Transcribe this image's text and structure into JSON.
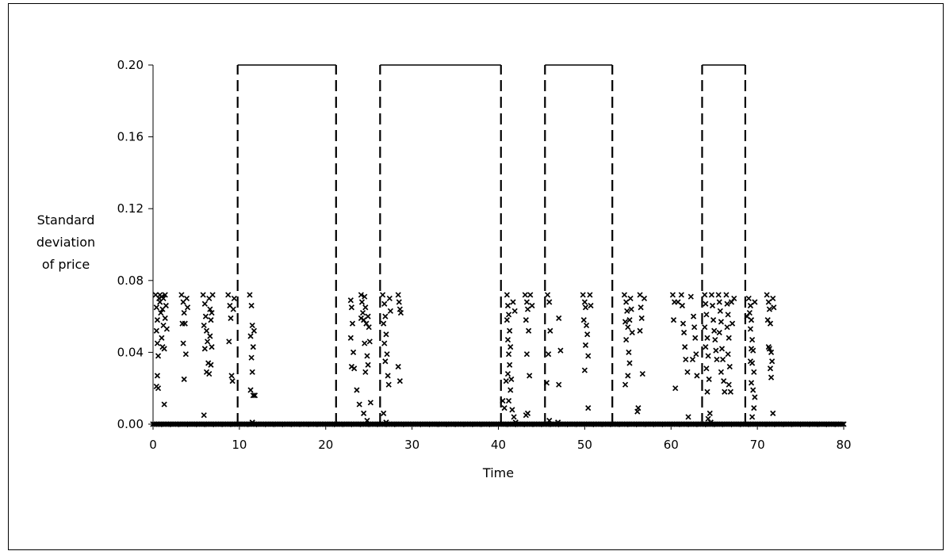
{
  "chart_data": {
    "type": "scatter",
    "title": "",
    "xlabel": "Time",
    "ylabel_lines": [
      "Standard",
      "deviation",
      "of price"
    ],
    "xlim": [
      0,
      80
    ],
    "ylim": [
      0,
      0.2
    ],
    "x_ticks": [
      0,
      10,
      20,
      30,
      40,
      50,
      60,
      70,
      80
    ],
    "x_tick_labels": [
      "0",
      "10",
      "20",
      "30",
      "40",
      "50",
      "60",
      "70",
      "80"
    ],
    "y_ticks": [
      0,
      0.04,
      0.08,
      0.12,
      0.16,
      0.2
    ],
    "y_tick_labels": [
      "0.00",
      "0.04",
      "0.08",
      "0.12",
      "0.16",
      "0.20"
    ],
    "grid": false,
    "legend": "none",
    "marker": "x",
    "colors": {
      "marker": "#000000",
      "regime_line": "#000000"
    },
    "regime_windows": [
      {
        "start": 9.8,
        "end": 21.2,
        "level": 0.2
      },
      {
        "start": 26.3,
        "end": 40.3,
        "level": 0.2
      },
      {
        "start": 45.4,
        "end": 53.2,
        "level": 0.2
      },
      {
        "start": 63.6,
        "end": 68.6,
        "level": 0.2
      }
    ],
    "zero_band": {
      "y": 0,
      "from": 0,
      "to": 80,
      "step": 0.2
    },
    "points": [
      [
        0.3,
        0.072
      ],
      [
        0.4,
        0.065
      ],
      [
        0.5,
        0.058
      ],
      [
        0.4,
        0.052
      ],
      [
        0.5,
        0.045
      ],
      [
        0.6,
        0.038
      ],
      [
        0.5,
        0.027
      ],
      [
        0.4,
        0.021
      ],
      [
        0.6,
        0.02
      ],
      [
        0.7,
        0.07
      ],
      [
        0.8,
        0.068
      ],
      [
        0.9,
        0.062
      ],
      [
        1.0,
        0.071
      ],
      [
        1.1,
        0.064
      ],
      [
        1.2,
        0.055
      ],
      [
        1.0,
        0.048
      ],
      [
        1.1,
        0.043
      ],
      [
        1.3,
        0.042
      ],
      [
        1.4,
        0.072
      ],
      [
        1.5,
        0.066
      ],
      [
        1.4,
        0.059
      ],
      [
        1.6,
        0.053
      ],
      [
        1.3,
        0.011
      ],
      [
        0.8,
        0.072
      ],
      [
        1.2,
        0.07
      ],
      [
        3.3,
        0.072
      ],
      [
        3.5,
        0.068
      ],
      [
        3.6,
        0.062
      ],
      [
        3.4,
        0.056
      ],
      [
        3.7,
        0.056
      ],
      [
        3.5,
        0.045
      ],
      [
        3.8,
        0.039
      ],
      [
        3.6,
        0.025
      ],
      [
        3.9,
        0.07
      ],
      [
        4.0,
        0.065
      ],
      [
        5.8,
        0.072
      ],
      [
        6.0,
        0.067
      ],
      [
        6.1,
        0.06
      ],
      [
        5.9,
        0.055
      ],
      [
        6.2,
        0.052
      ],
      [
        6.3,
        0.046
      ],
      [
        6.0,
        0.042
      ],
      [
        6.4,
        0.034
      ],
      [
        6.2,
        0.029
      ],
      [
        5.9,
        0.005
      ],
      [
        6.5,
        0.07
      ],
      [
        6.6,
        0.064
      ],
      [
        6.7,
        0.058
      ],
      [
        6.6,
        0.049
      ],
      [
        6.8,
        0.043
      ],
      [
        6.7,
        0.033
      ],
      [
        6.9,
        0.072
      ],
      [
        6.8,
        0.062
      ],
      [
        6.5,
        0.028
      ],
      [
        8.7,
        0.072
      ],
      [
        8.9,
        0.066
      ],
      [
        9.0,
        0.059
      ],
      [
        8.8,
        0.046
      ],
      [
        9.1,
        0.027
      ],
      [
        9.2,
        0.024
      ],
      [
        9.4,
        0.07
      ],
      [
        9.3,
        0.064
      ],
      [
        11.2,
        0.072
      ],
      [
        11.4,
        0.066
      ],
      [
        11.5,
        0.055
      ],
      [
        11.3,
        0.049
      ],
      [
        11.6,
        0.043
      ],
      [
        11.4,
        0.037
      ],
      [
        11.5,
        0.029
      ],
      [
        11.3,
        0.019
      ],
      [
        11.6,
        0.016
      ],
      [
        11.8,
        0.016
      ],
      [
        11.5,
        0.001
      ],
      [
        11.7,
        0.052
      ],
      [
        22.9,
        0.069
      ],
      [
        23.0,
        0.065
      ],
      [
        23.1,
        0.056
      ],
      [
        22.9,
        0.048
      ],
      [
        23.2,
        0.04
      ],
      [
        23.0,
        0.032
      ],
      [
        23.3,
        0.031
      ],
      [
        23.6,
        0.019
      ],
      [
        23.9,
        0.011
      ],
      [
        24.1,
        0.072
      ],
      [
        24.2,
        0.068
      ],
      [
        24.3,
        0.062
      ],
      [
        24.1,
        0.059
      ],
      [
        24.4,
        0.058
      ],
      [
        24.5,
        0.071
      ],
      [
        24.6,
        0.065
      ],
      [
        24.7,
        0.056
      ],
      [
        24.5,
        0.045
      ],
      [
        24.8,
        0.038
      ],
      [
        24.6,
        0.029
      ],
      [
        24.9,
        0.06
      ],
      [
        25.0,
        0.054
      ],
      [
        25.1,
        0.046
      ],
      [
        24.9,
        0.033
      ],
      [
        25.2,
        0.012
      ],
      [
        24.8,
        0.002
      ],
      [
        24.4,
        0.006
      ],
      [
        26.6,
        0.072
      ],
      [
        26.8,
        0.067
      ],
      [
        26.9,
        0.06
      ],
      [
        26.7,
        0.056
      ],
      [
        27.0,
        0.05
      ],
      [
        26.8,
        0.045
      ],
      [
        27.1,
        0.039
      ],
      [
        26.9,
        0.035
      ],
      [
        27.2,
        0.027
      ],
      [
        27.3,
        0.022
      ],
      [
        26.7,
        0.006
      ],
      [
        27.0,
        0.001
      ],
      [
        27.4,
        0.07
      ],
      [
        27.5,
        0.063
      ],
      [
        28.4,
        0.072
      ],
      [
        28.5,
        0.068
      ],
      [
        28.6,
        0.064
      ],
      [
        28.7,
        0.062
      ],
      [
        28.4,
        0.032
      ],
      [
        28.6,
        0.024
      ],
      [
        40.5,
        0.013
      ],
      [
        40.7,
        0.009
      ],
      [
        40.9,
        0.024
      ],
      [
        41.0,
        0.072
      ],
      [
        41.1,
        0.066
      ],
      [
        41.2,
        0.061
      ],
      [
        41.0,
        0.058
      ],
      [
        41.3,
        0.052
      ],
      [
        41.1,
        0.047
      ],
      [
        41.4,
        0.043
      ],
      [
        41.2,
        0.039
      ],
      [
        41.3,
        0.033
      ],
      [
        41.1,
        0.028
      ],
      [
        41.5,
        0.025
      ],
      [
        41.4,
        0.019
      ],
      [
        41.2,
        0.013
      ],
      [
        41.6,
        0.008
      ],
      [
        41.8,
        0.004
      ],
      [
        42.0,
        0.001
      ],
      [
        41.7,
        0.068
      ],
      [
        41.9,
        0.063
      ],
      [
        43.1,
        0.072
      ],
      [
        43.3,
        0.068
      ],
      [
        43.4,
        0.064
      ],
      [
        43.2,
        0.058
      ],
      [
        43.5,
        0.052
      ],
      [
        43.3,
        0.039
      ],
      [
        43.6,
        0.027
      ],
      [
        43.4,
        0.006
      ],
      [
        43.2,
        0.005
      ],
      [
        43.7,
        0.072
      ],
      [
        43.9,
        0.066
      ],
      [
        45.7,
        0.072
      ],
      [
        45.9,
        0.068
      ],
      [
        46.0,
        0.052
      ],
      [
        45.8,
        0.039
      ],
      [
        45.6,
        0.023
      ],
      [
        45.9,
        0.002
      ],
      [
        47.0,
        0.059
      ],
      [
        47.2,
        0.041
      ],
      [
        47.0,
        0.022
      ],
      [
        46.9,
        0.001
      ],
      [
        49.8,
        0.072
      ],
      [
        50.0,
        0.068
      ],
      [
        50.1,
        0.065
      ],
      [
        49.9,
        0.058
      ],
      [
        50.2,
        0.055
      ],
      [
        50.3,
        0.05
      ],
      [
        50.1,
        0.044
      ],
      [
        50.4,
        0.038
      ],
      [
        50.0,
        0.03
      ],
      [
        50.4,
        0.009
      ],
      [
        50.6,
        0.072
      ],
      [
        50.7,
        0.066
      ],
      [
        54.6,
        0.072
      ],
      [
        54.8,
        0.068
      ],
      [
        54.9,
        0.063
      ],
      [
        54.7,
        0.057
      ],
      [
        55.0,
        0.054
      ],
      [
        54.8,
        0.047
      ],
      [
        55.1,
        0.04
      ],
      [
        55.2,
        0.034
      ],
      [
        55.0,
        0.027
      ],
      [
        54.7,
        0.022
      ],
      [
        55.3,
        0.07
      ],
      [
        55.4,
        0.064
      ],
      [
        55.2,
        0.058
      ],
      [
        55.5,
        0.051
      ],
      [
        56.1,
        0.007
      ],
      [
        56.2,
        0.009
      ],
      [
        56.4,
        0.072
      ],
      [
        56.5,
        0.065
      ],
      [
        56.6,
        0.059
      ],
      [
        56.4,
        0.052
      ],
      [
        56.7,
        0.028
      ],
      [
        56.9,
        0.07
      ],
      [
        60.2,
        0.072
      ],
      [
        60.4,
        0.068
      ],
      [
        60.3,
        0.058
      ],
      [
        60.5,
        0.02
      ],
      [
        60.8,
        0.068
      ],
      [
        61.2,
        0.072
      ],
      [
        61.3,
        0.066
      ],
      [
        61.4,
        0.056
      ],
      [
        61.5,
        0.051
      ],
      [
        61.6,
        0.043
      ],
      [
        61.7,
        0.036
      ],
      [
        61.9,
        0.029
      ],
      [
        62.0,
        0.004
      ],
      [
        62.3,
        0.071
      ],
      [
        62.6,
        0.06
      ],
      [
        62.7,
        0.054
      ],
      [
        62.8,
        0.048
      ],
      [
        62.9,
        0.039
      ],
      [
        63.0,
        0.027
      ],
      [
        62.5,
        0.036
      ],
      [
        63.9,
        0.072
      ],
      [
        64.0,
        0.067
      ],
      [
        64.1,
        0.061
      ],
      [
        63.9,
        0.054
      ],
      [
        64.2,
        0.048
      ],
      [
        64.0,
        0.043
      ],
      [
        64.3,
        0.038
      ],
      [
        64.1,
        0.031
      ],
      [
        64.4,
        0.025
      ],
      [
        64.2,
        0.018
      ],
      [
        64.5,
        0.006
      ],
      [
        64.3,
        0.003
      ],
      [
        64.6,
        0.001
      ],
      [
        64.7,
        0.072
      ],
      [
        64.8,
        0.066
      ],
      [
        64.9,
        0.058
      ],
      [
        65.0,
        0.052
      ],
      [
        65.1,
        0.047
      ],
      [
        65.2,
        0.041
      ],
      [
        65.3,
        0.036
      ],
      [
        65.5,
        0.072
      ],
      [
        65.6,
        0.068
      ],
      [
        65.7,
        0.063
      ],
      [
        65.8,
        0.057
      ],
      [
        65.6,
        0.051
      ],
      [
        65.9,
        0.042
      ],
      [
        66.0,
        0.036
      ],
      [
        65.8,
        0.029
      ],
      [
        66.1,
        0.024
      ],
      [
        66.2,
        0.018
      ],
      [
        66.4,
        0.072
      ],
      [
        66.5,
        0.067
      ],
      [
        66.6,
        0.061
      ],
      [
        66.5,
        0.054
      ],
      [
        66.7,
        0.048
      ],
      [
        66.6,
        0.039
      ],
      [
        66.8,
        0.032
      ],
      [
        66.7,
        0.022
      ],
      [
        66.9,
        0.018
      ],
      [
        67.0,
        0.068
      ],
      [
        67.1,
        0.056
      ],
      [
        67.3,
        0.07
      ],
      [
        68.8,
        0.06
      ],
      [
        69.0,
        0.07
      ],
      [
        69.2,
        0.066
      ],
      [
        69.1,
        0.062
      ],
      [
        69.3,
        0.058
      ],
      [
        69.2,
        0.053
      ],
      [
        69.4,
        0.047
      ],
      [
        69.3,
        0.042
      ],
      [
        69.5,
        0.041
      ],
      [
        69.4,
        0.034
      ],
      [
        69.6,
        0.029
      ],
      [
        69.3,
        0.023
      ],
      [
        69.5,
        0.019
      ],
      [
        69.7,
        0.015
      ],
      [
        69.6,
        0.009
      ],
      [
        69.4,
        0.004
      ],
      [
        69.7,
        0.068
      ],
      [
        69.2,
        0.035
      ],
      [
        71.1,
        0.072
      ],
      [
        71.3,
        0.068
      ],
      [
        71.4,
        0.064
      ],
      [
        71.2,
        0.058
      ],
      [
        71.5,
        0.056
      ],
      [
        71.3,
        0.043
      ],
      [
        71.4,
        0.042
      ],
      [
        71.6,
        0.04
      ],
      [
        71.7,
        0.035
      ],
      [
        71.5,
        0.031
      ],
      [
        71.6,
        0.026
      ],
      [
        71.8,
        0.006
      ],
      [
        71.9,
        0.065
      ],
      [
        71.8,
        0.07
      ]
    ]
  }
}
